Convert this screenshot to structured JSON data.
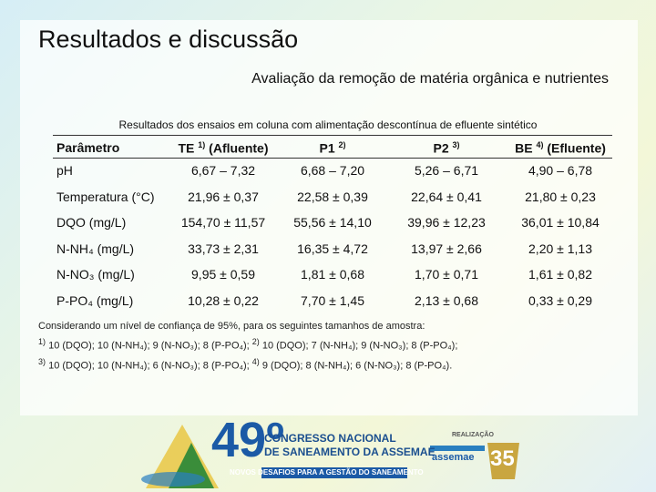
{
  "header": {
    "title": "Resultados e discussão",
    "subtitle": "Avaliação da remoção de matéria orgânica e nutrientes"
  },
  "table": {
    "caption": "Resultados dos ensaios em coluna com alimentação descontínua de efluente sintético",
    "columns": [
      {
        "text": "Parâmetro"
      },
      {
        "text": "TE",
        "sup": "1)",
        "suffix": "(Afluente)"
      },
      {
        "text": "P1",
        "sup": "2)"
      },
      {
        "text": "P2",
        "sup": "3)"
      },
      {
        "text": "BE",
        "sup": "4)",
        "suffix": "(Efluente)"
      }
    ],
    "rows": [
      [
        "pH",
        "6,67 – 7,32",
        "6,68 – 7,20",
        "5,26 – 6,71",
        "4,90 – 6,78"
      ],
      [
        "Temperatura (°C)",
        "21,96 ± 0,37",
        "22,58 ± 0,39",
        "22,64 ± 0,41",
        "21,80 ± 0,23"
      ],
      [
        "DQO (mg/L)",
        "154,70 ± 11,57",
        "55,56 ± 14,10",
        "39,96 ± 12,23",
        "36,01 ± 10,84"
      ],
      [
        "N-NH₄ (mg/L)",
        "33,73 ± 2,31",
        "16,35 ± 4,72",
        "13,97 ± 2,66",
        "2,20 ± 1,13"
      ],
      [
        "N-NO₃ (mg/L)",
        "9,95 ± 0,59",
        "1,81 ± 0,68",
        "1,70 ± 0,71",
        "1,61 ± 0,82"
      ],
      [
        "P-PO₄ (mg/L)",
        "10,28 ± 0,22",
        "7,70 ± 1,45",
        "2,13 ± 0,68",
        "0,33 ± 0,29"
      ]
    ]
  },
  "notes": {
    "intro": "Considerando um nível de confiança de 95%, para os seguintes tamanhos de amostra:",
    "lines": [
      [
        {
          "sup": "1)",
          "text": " 10 (DQO); 10 (N-NH₄); 9 (N-NO₃); 8 (P-PO₄); "
        },
        {
          "sup": "2)",
          "text": " 10 (DQO); 7 (N-NH₄); 9 (N-NO₃); 8 (P-PO₄);"
        }
      ],
      [
        {
          "sup": "3)",
          "text": " 10 (DQO); 10 (N-NH₄); 6 (N-NO₃); 8 (P-PO₄); "
        },
        {
          "sup": "4)",
          "text": " 9 (DQO); 8 (N-NH₄); 6 (N-NO₃); 8 (P-PO₄)."
        }
      ]
    ]
  },
  "footer": {
    "edition": "49º",
    "line1": "CONGRESSO NACIONAL",
    "line2": "DE SANEAMENTO DA ASSEMAE",
    "slogan": "NOVOS DESAFIOS PARA A GESTÃO DO SANEAMENTO",
    "organizer": "REALIZAÇÃO",
    "org_name": "assemae",
    "anniversary": "35"
  }
}
